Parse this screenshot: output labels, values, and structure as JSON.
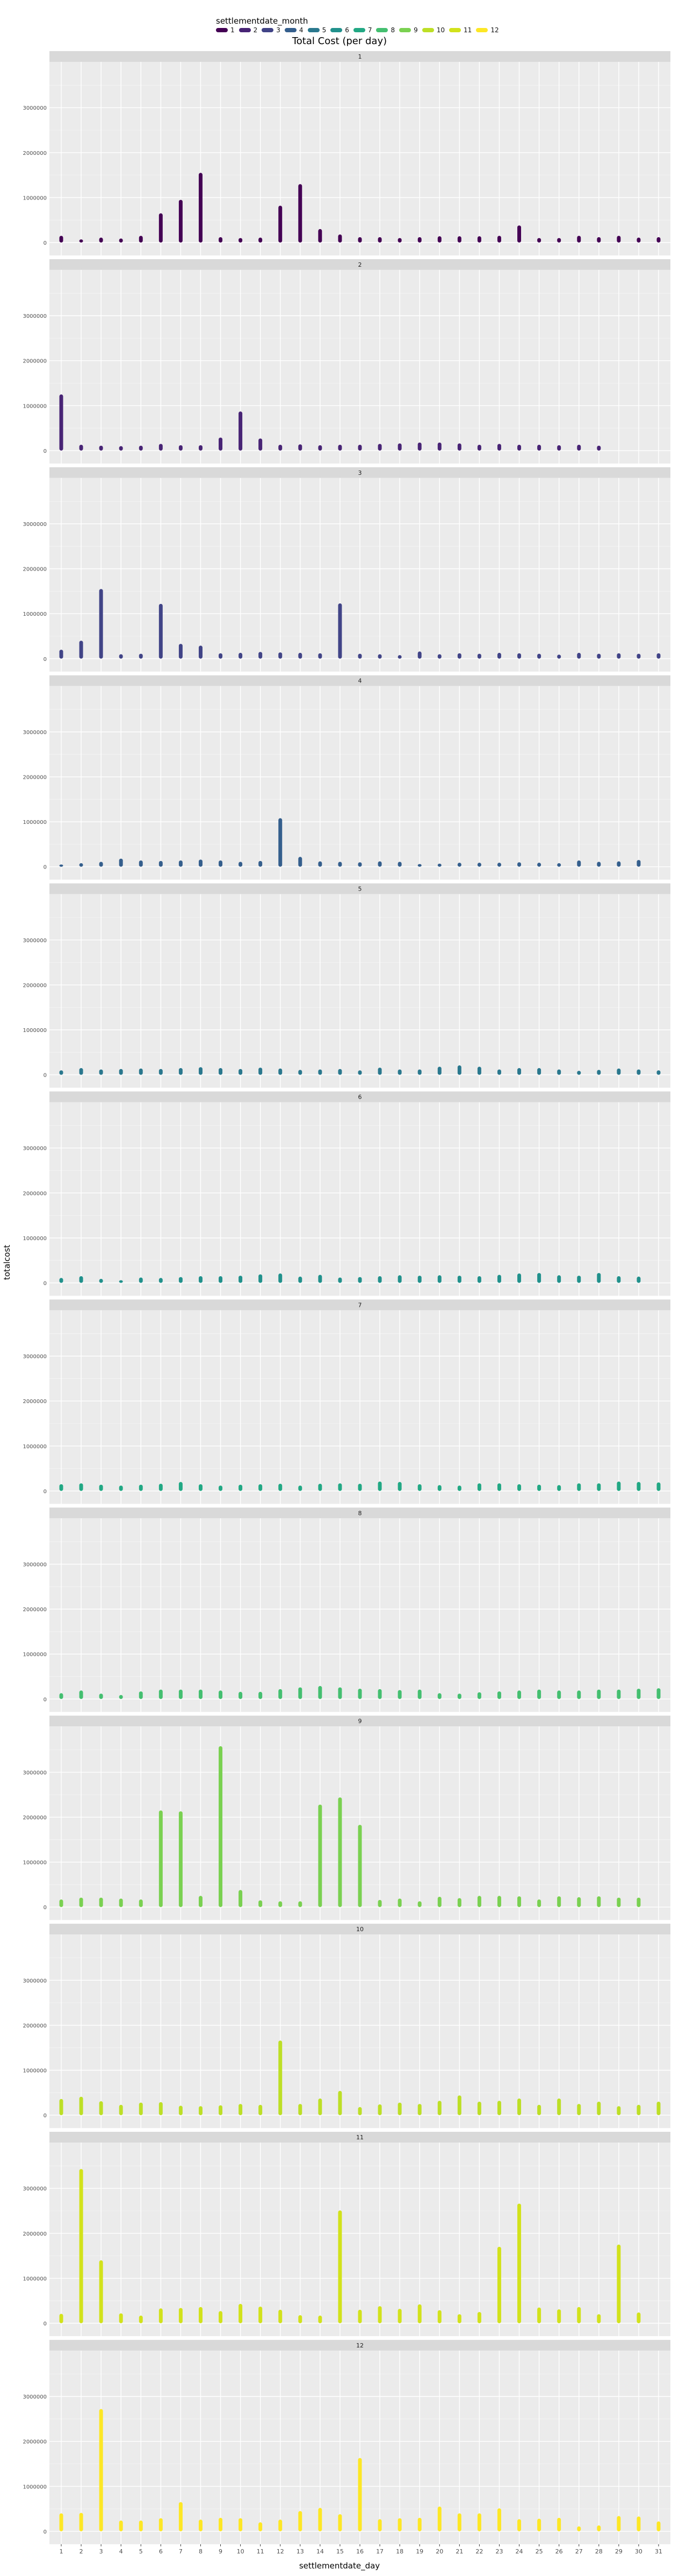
{
  "legend": {
    "title": "settlementdate_month",
    "items": [
      {
        "label": "1",
        "color": "#440154"
      },
      {
        "label": "2",
        "color": "#482475"
      },
      {
        "label": "3",
        "color": "#414487"
      },
      {
        "label": "4",
        "color": "#355f8d"
      },
      {
        "label": "5",
        "color": "#2a788e"
      },
      {
        "label": "6",
        "color": "#21918c"
      },
      {
        "label": "7",
        "color": "#22a884"
      },
      {
        "label": "8",
        "color": "#44bf70"
      },
      {
        "label": "9",
        "color": "#7ad151"
      },
      {
        "label": "10",
        "color": "#bddf26"
      },
      {
        "label": "11",
        "color": "#d2e21b"
      },
      {
        "label": "12",
        "color": "#fde725"
      }
    ]
  },
  "chart_data": {
    "type": "bar",
    "title": "Total Cost (per day)",
    "xlabel": "settlementdate_day",
    "ylabel": "totalcost",
    "facet_by": "settlementdate_month",
    "ylim": [
      0,
      3900000
    ],
    "yticks": [
      0,
      1000000,
      2000000,
      3000000
    ],
    "x_ticks": [
      1,
      2,
      3,
      4,
      5,
      6,
      7,
      8,
      9,
      10,
      11,
      12,
      13,
      14,
      15,
      16,
      17,
      18,
      19,
      20,
      21,
      22,
      23,
      24,
      25,
      26,
      27,
      28,
      29,
      30,
      31
    ],
    "panels": [
      {
        "month": "1",
        "color": "#440154",
        "values": [
          150000,
          70000,
          110000,
          90000,
          150000,
          650000,
          950000,
          1550000,
          120000,
          100000,
          110000,
          820000,
          1300000,
          300000,
          180000,
          120000,
          120000,
          100000,
          120000,
          140000,
          140000,
          140000,
          150000,
          380000,
          100000,
          100000,
          150000,
          120000,
          150000,
          110000,
          120000
        ]
      },
      {
        "month": "2",
        "color": "#482475",
        "values": [
          1250000,
          130000,
          110000,
          100000,
          110000,
          150000,
          120000,
          120000,
          290000,
          870000,
          270000,
          130000,
          140000,
          120000,
          130000,
          130000,
          150000,
          160000,
          180000,
          180000,
          160000,
          130000,
          150000,
          130000,
          130000,
          120000,
          130000,
          110000
        ]
      },
      {
        "month": "3",
        "color": "#414487",
        "values": [
          200000,
          400000,
          1550000,
          100000,
          110000,
          1220000,
          330000,
          290000,
          120000,
          130000,
          150000,
          140000,
          130000,
          120000,
          1230000,
          110000,
          100000,
          80000,
          160000,
          100000,
          120000,
          110000,
          130000,
          120000,
          110000,
          90000,
          130000,
          110000,
          120000,
          110000,
          120000
        ]
      },
      {
        "month": "4",
        "color": "#355f8d",
        "values": [
          50000,
          80000,
          110000,
          180000,
          140000,
          130000,
          140000,
          160000,
          140000,
          110000,
          130000,
          1080000,
          220000,
          120000,
          110000,
          100000,
          120000,
          110000,
          60000,
          70000,
          90000,
          90000,
          90000,
          100000,
          90000,
          80000,
          140000,
          110000,
          120000,
          150000
        ]
      },
      {
        "month": "5",
        "color": "#2a788e",
        "values": [
          100000,
          150000,
          120000,
          130000,
          140000,
          130000,
          150000,
          170000,
          150000,
          130000,
          160000,
          140000,
          110000,
          120000,
          130000,
          100000,
          160000,
          120000,
          120000,
          180000,
          210000,
          180000,
          120000,
          150000,
          150000,
          120000,
          90000,
          110000,
          140000,
          120000,
          100000
        ]
      },
      {
        "month": "6",
        "color": "#21918c",
        "values": [
          110000,
          150000,
          90000,
          60000,
          120000,
          110000,
          130000,
          150000,
          150000,
          160000,
          190000,
          210000,
          140000,
          180000,
          120000,
          130000,
          150000,
          170000,
          160000,
          170000,
          160000,
          150000,
          180000,
          210000,
          220000,
          170000,
          160000,
          220000,
          150000,
          140000
        ]
      },
      {
        "month": "7",
        "color": "#22a884",
        "values": [
          150000,
          170000,
          140000,
          120000,
          140000,
          160000,
          200000,
          150000,
          120000,
          140000,
          150000,
          160000,
          120000,
          160000,
          170000,
          160000,
          210000,
          200000,
          150000,
          130000,
          120000,
          170000,
          170000,
          150000,
          140000,
          130000,
          170000,
          170000,
          210000,
          200000,
          190000
        ]
      },
      {
        "month": "8",
        "color": "#44bf70",
        "values": [
          130000,
          190000,
          120000,
          90000,
          170000,
          210000,
          210000,
          210000,
          190000,
          160000,
          160000,
          220000,
          260000,
          290000,
          260000,
          230000,
          220000,
          200000,
          210000,
          130000,
          120000,
          150000,
          170000,
          190000,
          210000,
          190000,
          190000,
          210000,
          210000,
          230000,
          240000
        ]
      },
      {
        "month": "9",
        "color": "#7ad151",
        "values": [
          170000,
          210000,
          210000,
          190000,
          170000,
          2150000,
          2130000,
          250000,
          3580000,
          380000,
          150000,
          130000,
          130000,
          2280000,
          2440000,
          1830000,
          160000,
          190000,
          130000,
          230000,
          200000,
          250000,
          250000,
          240000,
          170000,
          240000,
          220000,
          240000,
          210000,
          210000
        ]
      },
      {
        "month": "10",
        "color": "#bddf26",
        "values": [
          360000,
          410000,
          310000,
          230000,
          280000,
          290000,
          210000,
          200000,
          220000,
          250000,
          230000,
          1660000,
          250000,
          370000,
          540000,
          180000,
          240000,
          280000,
          250000,
          320000,
          440000,
          300000,
          320000,
          370000,
          230000,
          370000,
          250000,
          300000,
          200000,
          230000,
          300000
        ]
      },
      {
        "month": "11",
        "color": "#d2e21b",
        "values": [
          210000,
          3430000,
          1400000,
          220000,
          170000,
          330000,
          340000,
          360000,
          270000,
          430000,
          370000,
          300000,
          180000,
          170000,
          2510000,
          300000,
          380000,
          320000,
          420000,
          290000,
          200000,
          250000,
          1700000,
          2660000,
          350000,
          310000,
          360000,
          200000,
          1750000,
          240000
        ]
      },
      {
        "month": "12",
        "color": "#fde725",
        "values": [
          400000,
          410000,
          2720000,
          240000,
          240000,
          290000,
          650000,
          260000,
          300000,
          290000,
          200000,
          260000,
          450000,
          520000,
          380000,
          1630000,
          270000,
          290000,
          300000,
          550000,
          400000,
          400000,
          510000,
          270000,
          280000,
          300000,
          110000,
          130000,
          340000,
          330000,
          220000
        ]
      }
    ]
  }
}
